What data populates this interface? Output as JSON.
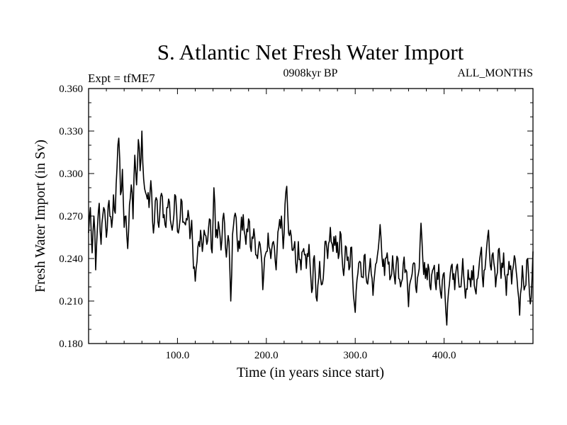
{
  "chart_data": {
    "type": "line",
    "title": "S. Atlantic Net Fresh Water Import",
    "left_label": "Expt = tfME7",
    "center_label": "0908kyr BP",
    "right_label": "ALL_MONTHS",
    "xlabel": "Time (in years since start)",
    "ylabel": "Fresh Water Import (in Sv)",
    "xlim": [
      0,
      500
    ],
    "ylim": [
      0.18,
      0.36
    ],
    "xticks": [
      100,
      200,
      300,
      400
    ],
    "xtick_labels": [
      "100.0",
      "200.0",
      "300.0",
      "400.0"
    ],
    "yticks": [
      0.18,
      0.21,
      0.24,
      0.27,
      0.3,
      0.33,
      0.36
    ],
    "ytick_labels": [
      "0.180",
      "0.210",
      "0.240",
      "0.270",
      "0.300",
      "0.330",
      "0.360"
    ],
    "line_color": "#000000",
    "series": [
      {
        "name": "Net Fresh Water Import",
        "anchors": [
          [
            0,
            0.258
          ],
          [
            2,
            0.276
          ],
          [
            4,
            0.244
          ],
          [
            6,
            0.27
          ],
          [
            8,
            0.232
          ],
          [
            10,
            0.262
          ],
          [
            12,
            0.279
          ],
          [
            14,
            0.25
          ],
          [
            17,
            0.276
          ],
          [
            20,
            0.255
          ],
          [
            23,
            0.281
          ],
          [
            26,
            0.262
          ],
          [
            28,
            0.285
          ],
          [
            30,
            0.272
          ],
          [
            32,
            0.304
          ],
          [
            34,
            0.325
          ],
          [
            36,
            0.285
          ],
          [
            38,
            0.303
          ],
          [
            40,
            0.262
          ],
          [
            42,
            0.27
          ],
          [
            44,
            0.247
          ],
          [
            46,
            0.278
          ],
          [
            48,
            0.292
          ],
          [
            50,
            0.268
          ],
          [
            52,
            0.313
          ],
          [
            54,
            0.292
          ],
          [
            56,
            0.324
          ],
          [
            58,
            0.302
          ],
          [
            60,
            0.33
          ],
          [
            62,
            0.296
          ],
          [
            65,
            0.285
          ],
          [
            68,
            0.276
          ],
          [
            70,
            0.295
          ],
          [
            73,
            0.258
          ],
          [
            76,
            0.283
          ],
          [
            79,
            0.262
          ],
          [
            82,
            0.286
          ],
          [
            86,
            0.264
          ],
          [
            90,
            0.282
          ],
          [
            94,
            0.26
          ],
          [
            98,
            0.284
          ],
          [
            101,
            0.258
          ],
          [
            104,
            0.282
          ],
          [
            108,
            0.265
          ],
          [
            112,
            0.274
          ],
          [
            114,
            0.254
          ],
          [
            116,
            0.267
          ],
          [
            118,
            0.233
          ],
          [
            120,
            0.224
          ],
          [
            122,
            0.238
          ],
          [
            124,
            0.252
          ],
          [
            126,
            0.26
          ],
          [
            128,
            0.245
          ],
          [
            130,
            0.26
          ],
          [
            133,
            0.25
          ],
          [
            136,
            0.268
          ],
          [
            139,
            0.244
          ],
          [
            141,
            0.29
          ],
          [
            143,
            0.255
          ],
          [
            146,
            0.266
          ],
          [
            149,
            0.246
          ],
          [
            152,
            0.272
          ],
          [
            155,
            0.241
          ],
          [
            158,
            0.252
          ],
          [
            160,
            0.21
          ],
          [
            162,
            0.257
          ],
          [
            165,
            0.272
          ],
          [
            168,
            0.245
          ],
          [
            171,
            0.258
          ],
          [
            174,
            0.271
          ],
          [
            177,
            0.25
          ],
          [
            180,
            0.268
          ],
          [
            183,
            0.245
          ],
          [
            186,
            0.261
          ],
          [
            190,
            0.24
          ],
          [
            193,
            0.25
          ],
          [
            196,
            0.218
          ],
          [
            199,
            0.243
          ],
          [
            202,
            0.258
          ],
          [
            205,
            0.24
          ],
          [
            208,
            0.252
          ],
          [
            211,
            0.232
          ],
          [
            214,
            0.262
          ],
          [
            217,
            0.27
          ],
          [
            219,
            0.247
          ],
          [
            221,
            0.278
          ],
          [
            223,
            0.291
          ],
          [
            225,
            0.258
          ],
          [
            227,
            0.26
          ],
          [
            229,
            0.246
          ],
          [
            232,
            0.252
          ],
          [
            234,
            0.23
          ],
          [
            236,
            0.252
          ],
          [
            239,
            0.232
          ],
          [
            242,
            0.247
          ],
          [
            245,
            0.233
          ],
          [
            248,
            0.25
          ],
          [
            251,
            0.216
          ],
          [
            254,
            0.242
          ],
          [
            257,
            0.21
          ],
          [
            260,
            0.238
          ],
          [
            263,
            0.222
          ],
          [
            266,
            0.252
          ],
          [
            269,
            0.24
          ],
          [
            272,
            0.262
          ],
          [
            275,
            0.245
          ],
          [
            278,
            0.256
          ],
          [
            281,
            0.24
          ],
          [
            284,
            0.257
          ],
          [
            287,
            0.228
          ],
          [
            290,
            0.248
          ],
          [
            293,
            0.232
          ],
          [
            296,
            0.248
          ],
          [
            298,
            0.214
          ],
          [
            300,
            0.202
          ],
          [
            302,
            0.225
          ],
          [
            305,
            0.238
          ],
          [
            308,
            0.227
          ],
          [
            311,
            0.243
          ],
          [
            314,
            0.222
          ],
          [
            317,
            0.24
          ],
          [
            320,
            0.214
          ],
          [
            323,
            0.236
          ],
          [
            326,
            0.247
          ],
          [
            328,
            0.264
          ],
          [
            330,
            0.242
          ],
          [
            333,
            0.228
          ],
          [
            336,
            0.244
          ],
          [
            339,
            0.225
          ],
          [
            342,
            0.242
          ],
          [
            345,
            0.222
          ],
          [
            348,
            0.24
          ],
          [
            351,
            0.22
          ],
          [
            354,
            0.236
          ],
          [
            357,
            0.232
          ],
          [
            360,
            0.206
          ],
          [
            363,
            0.226
          ],
          [
            366,
            0.237
          ],
          [
            369,
            0.216
          ],
          [
            372,
            0.233
          ],
          [
            374,
            0.265
          ],
          [
            376,
            0.24
          ],
          [
            379,
            0.226
          ],
          [
            382,
            0.236
          ],
          [
            385,
            0.218
          ],
          [
            388,
            0.233
          ],
          [
            391,
            0.218
          ],
          [
            394,
            0.236
          ],
          [
            397,
            0.212
          ],
          [
            400,
            0.23
          ],
          [
            403,
            0.193
          ],
          [
            406,
            0.222
          ],
          [
            409,
            0.236
          ],
          [
            412,
            0.218
          ],
          [
            415,
            0.236
          ],
          [
            418,
            0.22
          ],
          [
            421,
            0.24
          ],
          [
            424,
            0.212
          ],
          [
            427,
            0.232
          ],
          [
            430,
            0.22
          ],
          [
            433,
            0.235
          ],
          [
            436,
            0.215
          ],
          [
            439,
            0.232
          ],
          [
            442,
            0.248
          ],
          [
            444,
            0.22
          ],
          [
            447,
            0.24
          ],
          [
            450,
            0.26
          ],
          [
            452,
            0.235
          ],
          [
            455,
            0.244
          ],
          [
            458,
            0.22
          ],
          [
            461,
            0.246
          ],
          [
            464,
            0.226
          ],
          [
            467,
            0.244
          ],
          [
            470,
            0.214
          ],
          [
            473,
            0.238
          ],
          [
            476,
            0.222
          ],
          [
            479,
            0.242
          ],
          [
            482,
            0.226
          ],
          [
            485,
            0.2
          ],
          [
            488,
            0.235
          ],
          [
            491,
            0.22
          ],
          [
            494,
            0.24
          ],
          [
            497,
            0.208
          ],
          [
            500,
            0.245
          ]
        ]
      }
    ]
  }
}
